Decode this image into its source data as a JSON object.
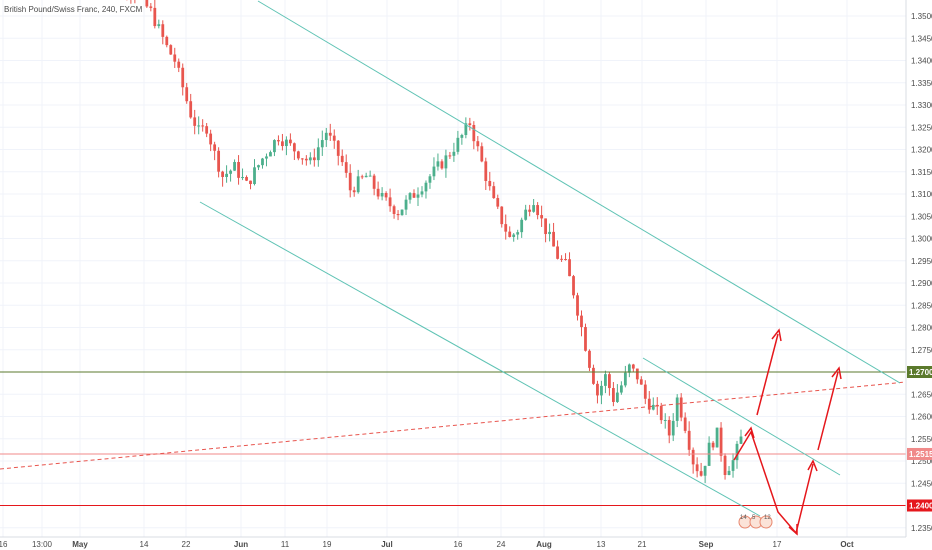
{
  "symbol_title": "British Pound/Swiss Franc, 240, FXCM",
  "colors": {
    "background": "#ffffff",
    "grid": "#f0f3fa",
    "up_candle": "#4caf8c",
    "down_candle": "#e8554e",
    "channel_line": "#5fc3b4",
    "projection_arrow": "#e5171c",
    "resistance_level": "#5b7a2c",
    "support_level": "#e5171c",
    "current_price": "#f08a8a",
    "dashed_trendline": "#e8554e",
    "axis_text": "#4a4a4a"
  },
  "icons": {
    "events": "flag-event-icon"
  },
  "chart_data": {
    "type": "candlestick",
    "title": "British Pound/Swiss Franc, 240, FXCM",
    "symbol": "GBPCHF",
    "interval": "240",
    "source": "FXCM",
    "y_axis_side": "right",
    "ylim": [
      1.2335,
      1.3545
    ],
    "grid": true,
    "y_ticks": [
      "1.35000",
      "1.34500",
      "1.34000",
      "1.33500",
      "1.33000",
      "1.32500",
      "1.32000",
      "1.31500",
      "1.31000",
      "1.30500",
      "1.30000",
      "1.29500",
      "1.29000",
      "1.28500",
      "1.28000",
      "1.27500",
      "1.27000",
      "1.26500",
      "1.26000",
      "1.25500",
      "1.25000",
      "1.24500",
      "1.24000",
      "1.23500"
    ],
    "x_ticks": [
      "16",
      "13:00",
      "May",
      "14",
      "22",
      "Jun",
      "11",
      "19",
      "Jul",
      "16",
      "24",
      "Aug",
      "13",
      "21",
      "Sep",
      "17",
      "Oct"
    ],
    "x_ticks_bold": [
      "May",
      "Jun",
      "Jul",
      "Aug",
      "Sep",
      "Oct"
    ],
    "price_path": [
      [
        0,
        1.36
      ],
      [
        8,
        1.357
      ],
      [
        14,
        1.351
      ],
      [
        18,
        1.343
      ],
      [
        20,
        1.34
      ],
      [
        22,
        1.334
      ],
      [
        24,
        1.328
      ],
      [
        26,
        1.324
      ],
      [
        28,
        1.325
      ],
      [
        30,
        1.319
      ],
      [
        32,
        1.314
      ],
      [
        35,
        1.316
      ],
      [
        38,
        1.312
      ],
      [
        42,
        1.318
      ],
      [
        46,
        1.323
      ],
      [
        50,
        1.32
      ],
      [
        54,
        1.317
      ],
      [
        58,
        1.324
      ],
      [
        62,
        1.317
      ],
      [
        64,
        1.311
      ],
      [
        68,
        1.314
      ],
      [
        72,
        1.309
      ],
      [
        76,
        1.306
      ],
      [
        80,
        1.31
      ],
      [
        84,
        1.314
      ],
      [
        88,
        1.318
      ],
      [
        92,
        1.323
      ],
      [
        94,
        1.326
      ],
      [
        96,
        1.32
      ],
      [
        98,
        1.314
      ],
      [
        100,
        1.308
      ],
      [
        102,
        1.304
      ],
      [
        104,
        1.3
      ],
      [
        106,
        1.302
      ],
      [
        108,
        1.306
      ],
      [
        110,
        1.309
      ],
      [
        112,
        1.304
      ],
      [
        114,
        1.3
      ],
      [
        116,
        1.296
      ],
      [
        118,
        1.294
      ],
      [
        120,
        1.288
      ],
      [
        122,
        1.28
      ],
      [
        124,
        1.272
      ],
      [
        126,
        1.265
      ],
      [
        128,
        1.269
      ],
      [
        130,
        1.264
      ],
      [
        132,
        1.267
      ],
      [
        134,
        1.271
      ],
      [
        136,
        1.269
      ],
      [
        138,
        1.264
      ],
      [
        140,
        1.262
      ],
      [
        142,
        1.26
      ],
      [
        144,
        1.256
      ],
      [
        146,
        1.264
      ],
      [
        148,
        1.258
      ],
      [
        150,
        1.25
      ],
      [
        152,
        1.247
      ],
      [
        154,
        1.253
      ],
      [
        156,
        1.256
      ],
      [
        158,
        1.248
      ],
      [
        160,
        1.25
      ],
      [
        162,
        1.255
      ]
    ],
    "levels": [
      {
        "price": 1.27,
        "label": "1.27000",
        "style": "resistance"
      },
      {
        "price": 1.25158,
        "label": "1.25158",
        "style": "current"
      },
      {
        "price": 1.24,
        "label": "1.24000",
        "style": "support"
      }
    ],
    "descending_channel": {
      "upper_line": [
        [
          "2018-05-04",
          1.355
        ],
        [
          "2018-10-10",
          1.266
        ]
      ],
      "lower_line": [
        [
          "2018-05-23",
          1.3075
        ],
        [
          "2018-09-17",
          1.2355
        ]
      ]
    },
    "inner_channel": [
      [
        "2018-08-22",
        1.274
      ],
      [
        "2018-09-30",
        1.247
      ]
    ],
    "dashed_trendline": [
      [
        "2018-04-16",
        1.2495
      ],
      [
        "2018-10-10",
        1.267
      ]
    ],
    "projection_arrows": [
      {
        "from": [
          "2018-09-10",
          1.2535
        ],
        "to": [
          "2018-09-21",
          1.237
        ]
      },
      {
        "from": [
          "2018-09-21",
          1.237
        ],
        "to": [
          "2018-09-27",
          1.2475
        ]
      }
    ],
    "event_markers": [
      "14",
      "5",
      "12"
    ]
  }
}
